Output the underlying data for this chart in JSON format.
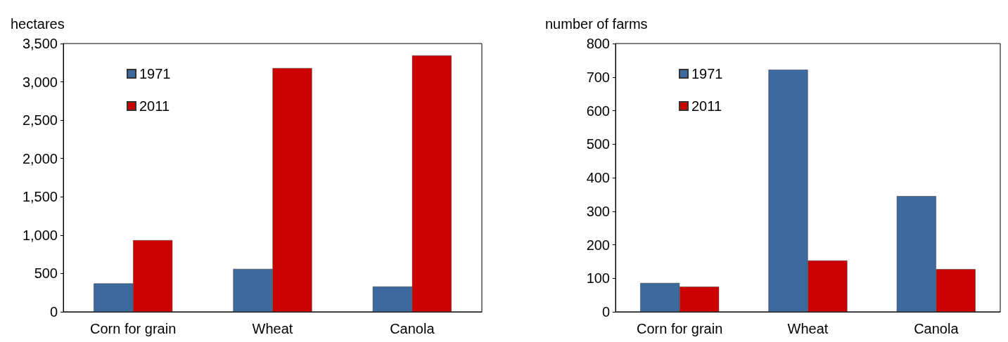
{
  "chart_data": [
    {
      "type": "bar",
      "ylabel": "hectares",
      "categories": [
        "Corn for grain",
        "Wheat",
        "Canola"
      ],
      "series": [
        {
          "name": "1971",
          "color": "#3d6a9e",
          "values": [
            370,
            560,
            330
          ]
        },
        {
          "name": "2011",
          "color": "#cc0000",
          "values": [
            935,
            3180,
            3345
          ]
        }
      ],
      "ylim": [
        0,
        3500
      ],
      "yticks": [
        0,
        {
          "value": 500,
          "label": "500"
        },
        {
          "value": 1000,
          "label": "1,000"
        },
        {
          "value": 1500,
          "label": "1,500"
        },
        {
          "value": 2000,
          "label": "2,000"
        },
        {
          "value": 2500,
          "label": "2,500"
        },
        {
          "value": 3000,
          "label": "3,000"
        },
        {
          "value": 3500,
          "label": "3,500"
        }
      ],
      "grid": false,
      "legend": "top left"
    },
    {
      "type": "bar",
      "ylabel": "number of farms",
      "categories": [
        "Corn for grain",
        "Wheat",
        "Canola"
      ],
      "series": [
        {
          "name": "1971",
          "color": "#3d6a9e",
          "values": [
            86,
            722,
            345
          ]
        },
        {
          "name": "2011",
          "color": "#cc0000",
          "values": [
            75,
            153,
            127
          ]
        }
      ],
      "ylim": [
        0,
        800
      ],
      "yticks": [
        0,
        100,
        200,
        300,
        400,
        500,
        600,
        700,
        800
      ],
      "grid": false,
      "legend": "top left"
    }
  ]
}
